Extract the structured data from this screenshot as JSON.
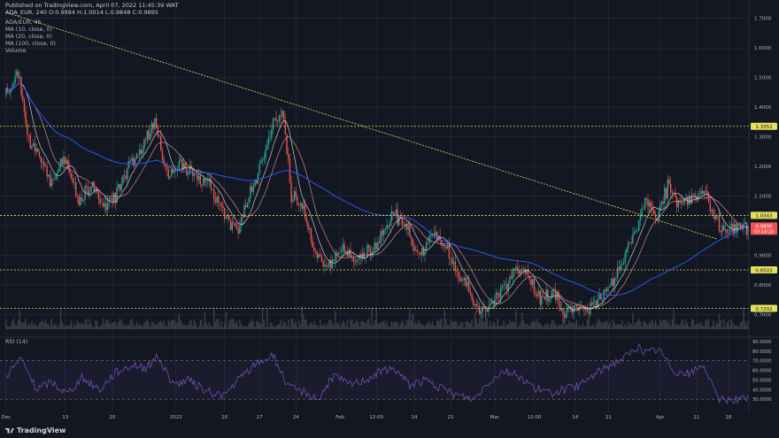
{
  "header": {
    "published": "Published on TradingView.com, April 07, 2022 11:45:39 WAT",
    "ohlc": "ADA_EUR, 240  O:0.9994  H:1.0014  L:0.9848  C:0.9895"
  },
  "indicators": [
    "ADA/EUR, 4h",
    "MA (10, close, 0)",
    "MA (20, close, 0)",
    "MA (100, close, 0)",
    "Volume"
  ],
  "rsi_label": "RSI (14)",
  "footer": {
    "brand": "TradingView"
  },
  "colors": {
    "background": "#131722",
    "grid": "#2a2e39",
    "up": "#26a69a",
    "down": "#ef5350",
    "ma_fast": "#e0e3eb",
    "ma_mid": "#ef9a9a",
    "ma_slow": "#2962ff",
    "trendline": "#e6e05a",
    "rsi": "#7e57c2",
    "volume": "#5d606b"
  },
  "chart_data": [
    {
      "type": "candlestick",
      "title": "ADA/EUR, 4h",
      "ylim": [
        0.65,
        1.72
      ],
      "y_ticks": [
        1.7,
        1.6,
        1.5,
        1.4,
        1.3,
        1.2,
        1.1,
        1.0,
        0.9,
        0.8,
        0.7
      ],
      "y_tick_labels": [
        "1.7000",
        "1.6000",
        "1.5000",
        "1.4000",
        "1.3000",
        "1.2000",
        "1.1000",
        "1.0000",
        "0.9000",
        "0.8000",
        "0.7000"
      ],
      "x_tick_labels": [
        "Dec",
        "13",
        "20",
        "2022",
        "10",
        "17",
        "24",
        "Feb",
        "12:00",
        "14",
        "21",
        "Mar",
        "12:00",
        "14",
        "21",
        "Apr",
        "11",
        "18"
      ],
      "x_tick_index": [
        0,
        39,
        70,
        112,
        144,
        167,
        191,
        220,
        244,
        269,
        293,
        322,
        348,
        375,
        397,
        431,
        455,
        476
      ],
      "n_candles": 490,
      "horizontal_levels": [
        {
          "value": 1.3352,
          "label": "1.3352"
        },
        {
          "value": 1.0343,
          "label": "1.0343"
        },
        {
          "value": 0.8503,
          "label": "0.8503"
        },
        {
          "value": 0.7202,
          "label": "0.7202"
        }
      ],
      "trendline": {
        "from": {
          "index": 0,
          "value": 1.72
        },
        "to": {
          "index": 468,
          "value": 0.955
        }
      },
      "last_price": {
        "value": 0.9895,
        "label": "0.9895",
        "countdown": "03:14:20"
      },
      "price_path": [
        [
          0,
          1.44
        ],
        [
          8,
          1.52
        ],
        [
          14,
          1.3
        ],
        [
          22,
          1.23
        ],
        [
          30,
          1.14
        ],
        [
          38,
          1.23
        ],
        [
          48,
          1.09
        ],
        [
          56,
          1.14
        ],
        [
          64,
          1.07
        ],
        [
          74,
          1.11
        ],
        [
          84,
          1.23
        ],
        [
          92,
          1.28
        ],
        [
          98,
          1.36
        ],
        [
          106,
          1.17
        ],
        [
          114,
          1.2
        ],
        [
          124,
          1.18
        ],
        [
          134,
          1.13
        ],
        [
          144,
          1.04
        ],
        [
          152,
          0.98
        ],
        [
          160,
          1.11
        ],
        [
          168,
          1.2
        ],
        [
          176,
          1.34
        ],
        [
          182,
          1.4
        ],
        [
          188,
          1.1
        ],
        [
          196,
          1.06
        ],
        [
          204,
          0.9
        ],
        [
          212,
          0.87
        ],
        [
          222,
          0.92
        ],
        [
          232,
          0.89
        ],
        [
          240,
          0.92
        ],
        [
          248,
          0.96
        ],
        [
          256,
          1.04
        ],
        [
          264,
          0.99
        ],
        [
          272,
          0.9
        ],
        [
          282,
          0.97
        ],
        [
          290,
          0.93
        ],
        [
          298,
          0.84
        ],
        [
          306,
          0.77
        ],
        [
          314,
          0.7
        ],
        [
          322,
          0.76
        ],
        [
          330,
          0.8
        ],
        [
          336,
          0.86
        ],
        [
          344,
          0.83
        ],
        [
          352,
          0.75
        ],
        [
          360,
          0.78
        ],
        [
          368,
          0.71
        ],
        [
          376,
          0.73
        ],
        [
          384,
          0.71
        ],
        [
          392,
          0.76
        ],
        [
          400,
          0.81
        ],
        [
          408,
          0.9
        ],
        [
          416,
          1.0
        ],
        [
          422,
          1.1
        ],
        [
          428,
          1.02
        ],
        [
          436,
          1.13
        ],
        [
          444,
          1.07
        ],
        [
          452,
          1.1
        ],
        [
          460,
          1.12
        ],
        [
          466,
          1.05
        ],
        [
          470,
          0.99
        ]
      ],
      "rsi": {
        "ylim": [
          20,
          90
        ],
        "y_ticks": [
          90,
          80,
          70,
          60,
          50,
          40,
          30
        ],
        "y_tick_labels": [
          "90.0000",
          "80.0000",
          "70.0000",
          "60.0000",
          "50.0000",
          "40.0000",
          "30.0000"
        ],
        "band": [
          30,
          70
        ],
        "path": [
          [
            0,
            55
          ],
          [
            10,
            72
          ],
          [
            20,
            40
          ],
          [
            30,
            48
          ],
          [
            40,
            36
          ],
          [
            50,
            52
          ],
          [
            62,
            40
          ],
          [
            72,
            58
          ],
          [
            84,
            66
          ],
          [
            92,
            62
          ],
          [
            100,
            75
          ],
          [
            110,
            45
          ],
          [
            120,
            50
          ],
          [
            132,
            38
          ],
          [
            144,
            34
          ],
          [
            156,
            55
          ],
          [
            166,
            68
          ],
          [
            176,
            76
          ],
          [
            186,
            42
          ],
          [
            196,
            38
          ],
          [
            206,
            30
          ],
          [
            216,
            55
          ],
          [
            226,
            45
          ],
          [
            236,
            50
          ],
          [
            246,
            58
          ],
          [
            256,
            62
          ],
          [
            266,
            45
          ],
          [
            276,
            50
          ],
          [
            288,
            40
          ],
          [
            298,
            34
          ],
          [
            308,
            30
          ],
          [
            318,
            48
          ],
          [
            328,
            60
          ],
          [
            338,
            54
          ],
          [
            348,
            42
          ],
          [
            358,
            36
          ],
          [
            368,
            40
          ],
          [
            378,
            44
          ],
          [
            388,
            56
          ],
          [
            398,
            66
          ],
          [
            408,
            74
          ],
          [
            416,
            84
          ],
          [
            422,
            78
          ],
          [
            430,
            82
          ],
          [
            440,
            60
          ],
          [
            450,
            56
          ],
          [
            460,
            66
          ],
          [
            466,
            40
          ],
          [
            470,
            30
          ]
        ]
      }
    }
  ]
}
